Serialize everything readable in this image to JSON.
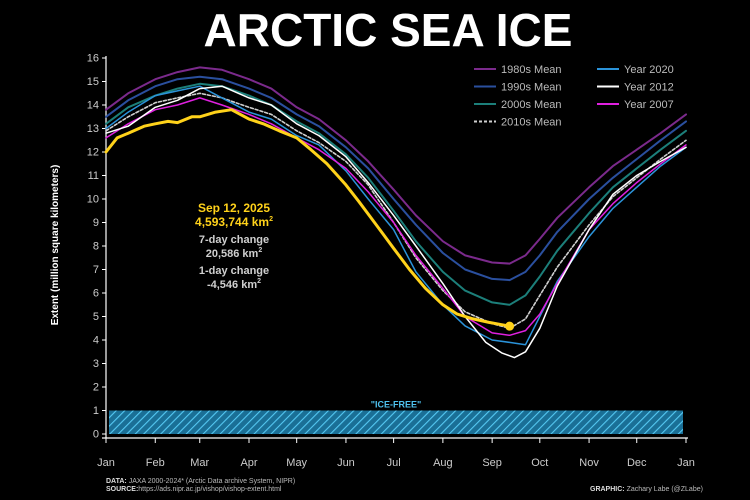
{
  "chart_data": {
    "type": "line",
    "title": "ARCTIC SEA ICE",
    "ylabel": "Extent (million square kilometers)",
    "xlabel": "",
    "ylim": [
      0,
      16
    ],
    "yticks": [
      0,
      1,
      2,
      3,
      4,
      5,
      6,
      7,
      8,
      9,
      10,
      11,
      12,
      13,
      14,
      15,
      16
    ],
    "x_tick_labels": [
      "Jan",
      "Feb",
      "Mar",
      "Apr",
      "May",
      "Jun",
      "Jul",
      "Aug",
      "Sep",
      "Oct",
      "Nov",
      "Dec",
      "Jan"
    ],
    "x_tick_days": [
      1,
      32,
      60,
      91,
      121,
      152,
      182,
      213,
      244,
      274,
      305,
      335,
      366
    ],
    "xlim": [
      1,
      366
    ],
    "grid": false,
    "legend_placement": "top-right",
    "series": [
      {
        "name": "1980s Mean",
        "color": "#7b2a8c",
        "width": 2,
        "dash": "",
        "x": [
          1,
          15,
          32,
          46,
          60,
          74,
          91,
          105,
          121,
          135,
          152,
          166,
          182,
          196,
          213,
          227,
          244,
          255,
          265,
          274,
          285,
          305,
          320,
          335,
          350,
          366
        ],
        "y": [
          13.8,
          14.5,
          15.1,
          15.4,
          15.6,
          15.5,
          15.1,
          14.7,
          13.9,
          13.4,
          12.5,
          11.6,
          10.4,
          9.3,
          8.2,
          7.6,
          7.3,
          7.25,
          7.6,
          8.3,
          9.2,
          10.5,
          11.4,
          12.1,
          12.8,
          13.6
        ]
      },
      {
        "name": "1990s Mean",
        "color": "#2a4f9e",
        "width": 2,
        "dash": "",
        "x": [
          1,
          15,
          32,
          46,
          60,
          74,
          91,
          105,
          121,
          135,
          152,
          166,
          182,
          196,
          213,
          227,
          244,
          255,
          265,
          274,
          285,
          305,
          320,
          335,
          350,
          366
        ],
        "y": [
          13.5,
          14.2,
          14.8,
          15.1,
          15.2,
          15.1,
          14.7,
          14.3,
          13.6,
          13.1,
          12.2,
          11.3,
          10.0,
          8.9,
          7.7,
          7.0,
          6.6,
          6.55,
          6.9,
          7.6,
          8.6,
          10.0,
          10.9,
          11.7,
          12.5,
          13.3
        ]
      },
      {
        "name": "2000s Mean",
        "color": "#1c7f7a",
        "width": 2,
        "dash": "",
        "x": [
          1,
          15,
          32,
          46,
          60,
          74,
          91,
          105,
          121,
          135,
          152,
          166,
          182,
          196,
          213,
          227,
          244,
          255,
          265,
          274,
          285,
          305,
          320,
          335,
          350,
          366
        ],
        "y": [
          13.2,
          13.9,
          14.4,
          14.7,
          14.9,
          14.8,
          14.4,
          14.0,
          13.3,
          12.8,
          11.9,
          10.9,
          9.5,
          8.2,
          6.9,
          6.1,
          5.6,
          5.5,
          5.9,
          6.7,
          7.8,
          9.4,
          10.5,
          11.3,
          12.1,
          12.9
        ]
      },
      {
        "name": "2010s Mean",
        "color": "#cfcfcf",
        "width": 1.6,
        "dash": "3,2",
        "x": [
          1,
          15,
          32,
          46,
          60,
          74,
          91,
          105,
          121,
          135,
          152,
          166,
          182,
          196,
          213,
          227,
          244,
          255,
          265,
          274,
          285,
          305,
          320,
          335,
          350,
          366
        ],
        "y": [
          12.9,
          13.5,
          14.1,
          14.3,
          14.5,
          14.3,
          13.9,
          13.6,
          12.9,
          12.4,
          11.6,
          10.6,
          9.0,
          7.5,
          6.1,
          5.2,
          4.7,
          4.5,
          4.9,
          5.9,
          7.1,
          8.9,
          10.1,
          10.9,
          11.7,
          12.5
        ]
      },
      {
        "name": "Year 2020",
        "color": "#2b93d9",
        "width": 1.5,
        "dash": "",
        "x": [
          1,
          15,
          32,
          46,
          60,
          74,
          91,
          105,
          121,
          135,
          152,
          166,
          182,
          196,
          213,
          227,
          244,
          255,
          265,
          274,
          285,
          305,
          320,
          335,
          350,
          366
        ],
        "y": [
          13.0,
          13.7,
          14.4,
          14.6,
          14.8,
          14.3,
          13.7,
          13.4,
          12.7,
          12.3,
          11.2,
          10.0,
          8.7,
          6.9,
          5.5,
          4.6,
          4.0,
          3.9,
          3.8,
          5.0,
          6.5,
          8.4,
          9.6,
          10.5,
          11.4,
          12.2
        ]
      },
      {
        "name": "Year 2012",
        "color": "#ffffff",
        "width": 1.5,
        "dash": "",
        "x": [
          1,
          15,
          32,
          46,
          60,
          74,
          91,
          105,
          121,
          135,
          152,
          166,
          182,
          196,
          213,
          227,
          240,
          250,
          258,
          265,
          274,
          285,
          305,
          320,
          335,
          350,
          366
        ],
        "y": [
          12.8,
          13.1,
          13.9,
          14.2,
          14.7,
          14.8,
          14.3,
          14.0,
          13.2,
          12.7,
          11.8,
          10.7,
          9.3,
          8.0,
          6.4,
          5.0,
          3.9,
          3.45,
          3.25,
          3.5,
          4.5,
          6.3,
          8.7,
          10.2,
          11.0,
          11.6,
          12.2
        ]
      },
      {
        "name": "Year 2007",
        "color": "#e020e0",
        "width": 1.5,
        "dash": "",
        "x": [
          1,
          15,
          32,
          46,
          60,
          74,
          91,
          105,
          121,
          135,
          152,
          166,
          182,
          196,
          213,
          227,
          244,
          255,
          265,
          274,
          285,
          305,
          320,
          335,
          350,
          366
        ],
        "y": [
          12.6,
          13.2,
          13.8,
          14.0,
          14.3,
          14.0,
          13.6,
          13.2,
          12.6,
          12.1,
          11.3,
          10.3,
          9.0,
          7.6,
          6.2,
          5.0,
          4.3,
          4.2,
          4.4,
          5.1,
          6.4,
          8.7,
          9.8,
          10.7,
          11.5,
          12.3
        ]
      },
      {
        "name": "2025",
        "color": "#ffd21a",
        "width": 3,
        "dash": "",
        "x": [
          1,
          8,
          15,
          25,
          32,
          40,
          46,
          55,
          60,
          70,
          80,
          91,
          100,
          110,
          121,
          130,
          140,
          152,
          160,
          170,
          182,
          192,
          202,
          213,
          222,
          232,
          242,
          250,
          255
        ],
        "y": [
          12.0,
          12.6,
          12.8,
          13.1,
          13.2,
          13.3,
          13.25,
          13.5,
          13.5,
          13.7,
          13.8,
          13.4,
          13.2,
          12.9,
          12.6,
          12.1,
          11.5,
          10.6,
          9.9,
          9.0,
          7.9,
          7.0,
          6.2,
          5.5,
          5.1,
          4.9,
          4.75,
          4.65,
          4.59
        ]
      }
    ],
    "annotation": {
      "date": "Sep 12, 2025",
      "extent": "4,593,744 km",
      "change7_label": "7-day change",
      "change7": "20,586 km",
      "change1_label": "1-day change",
      "change1": "-4,546 km",
      "superscript": "2"
    },
    "ice_free_label": "\"ICE-FREE\"",
    "ice_free_threshold": 1
  },
  "footer": {
    "data_label": "DATA:",
    "data_text": "JAXA 2000-2024* (Arctic Data archive System, NIPR)",
    "source_label": "SOURCE:",
    "source_text": "https://ads.nipr.ac.jp/vishop/vishop-extent.html",
    "graphic_label": "GRAPHIC:",
    "graphic_text": "Zachary Labe (@ZLabe)"
  },
  "colors": {
    "accent": "#ffd21a",
    "ice_free": "#29a3d6",
    "axis": "#ffffff",
    "label": "#cccccc"
  }
}
